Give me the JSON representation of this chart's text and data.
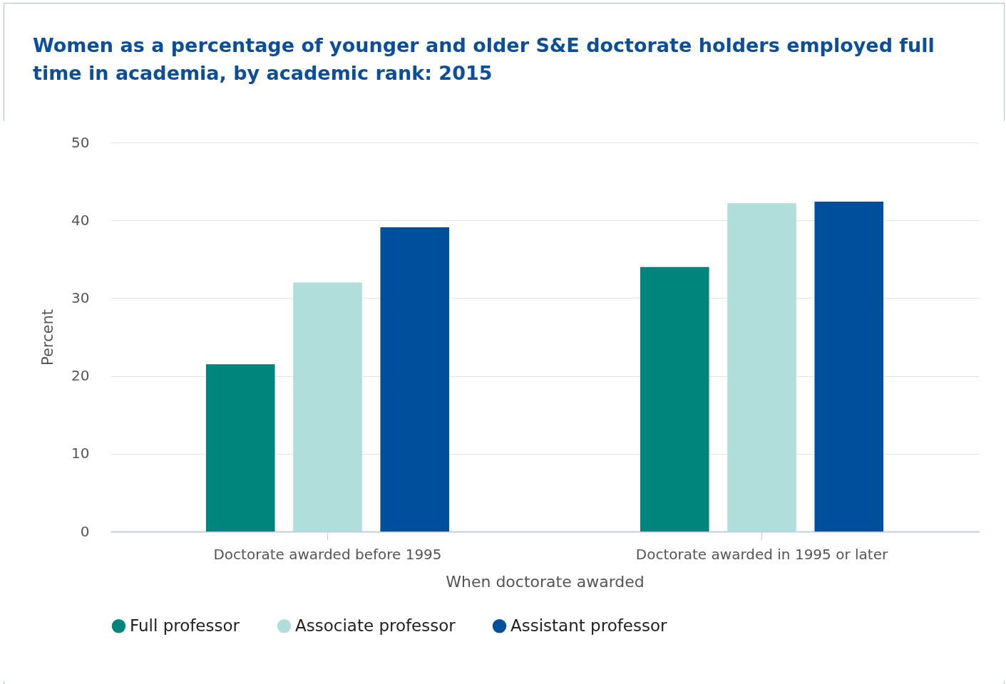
{
  "chart_data": {
    "type": "bar",
    "title": "Women as a percentage of younger and older S&E doctorate holders employed full time in academia, by academic rank: 2015",
    "xlabel": "When doctorate awarded",
    "ylabel": "Percent",
    "categories": [
      "Doctorate awarded before 1995",
      "Doctorate awarded in 1995 or later"
    ],
    "series": [
      {
        "name": "Full professor",
        "color": "#00857c",
        "values": [
          21.5,
          34
        ]
      },
      {
        "name": "Associate professor",
        "color": "#b0deda",
        "values": [
          32,
          42.2
        ]
      },
      {
        "name": "Assistant professor",
        "color": "#004f9c",
        "values": [
          39.1,
          42.4
        ]
      }
    ],
    "ylim": [
      0,
      50
    ],
    "yticks": [
      0,
      10,
      20,
      30,
      40,
      50
    ],
    "grid": "y",
    "legend": "bottom"
  }
}
